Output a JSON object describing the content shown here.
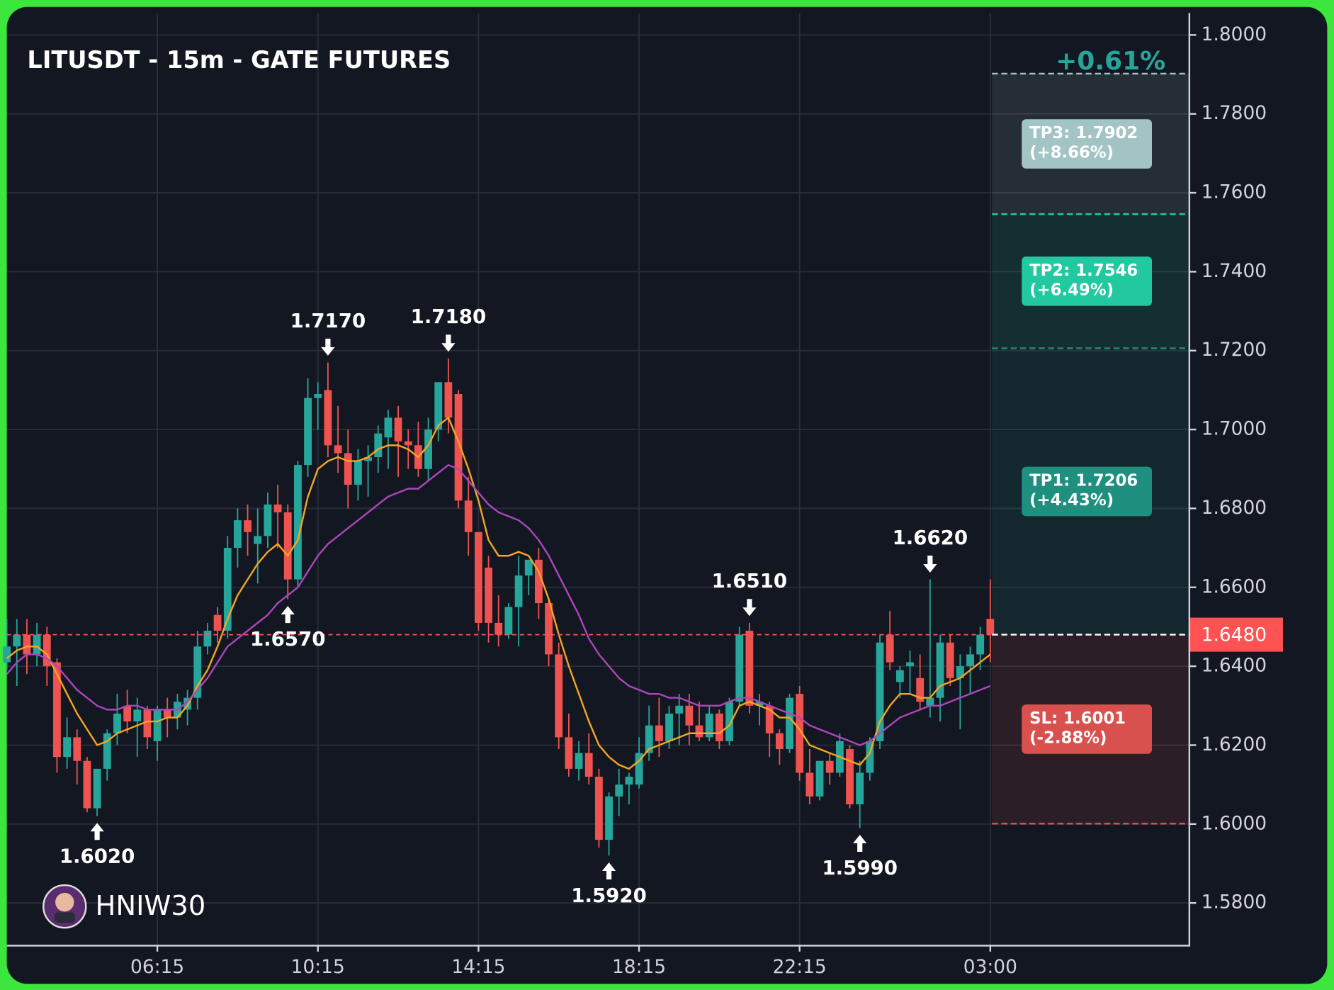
{
  "chart_data": {
    "type": "candlestick",
    "title": "LITUSDT - 15m - GATE FUTURES",
    "change_label": "+0.61%",
    "watermark": "HNIW30",
    "up_color": "#26a69a",
    "down_color": "#ef5350",
    "grid": true,
    "x": [
      "02:30",
      "02:45",
      "03:00",
      "03:15",
      "03:30",
      "03:45",
      "04:00",
      "04:15",
      "04:30",
      "04:45",
      "05:00",
      "05:15",
      "05:30",
      "05:45",
      "06:00",
      "06:15",
      "06:30",
      "06:45",
      "07:00",
      "07:15",
      "07:30",
      "07:45",
      "08:00",
      "08:15",
      "08:30",
      "08:45",
      "09:00",
      "09:15",
      "09:30",
      "09:45",
      "10:00",
      "10:15",
      "10:30",
      "10:45",
      "11:00",
      "11:15",
      "11:30",
      "11:45",
      "12:00",
      "12:15",
      "12:30",
      "12:45",
      "13:00",
      "13:15",
      "13:30",
      "13:45",
      "14:00",
      "14:15",
      "14:30",
      "14:45",
      "15:00",
      "15:15",
      "15:30",
      "15:45",
      "16:00",
      "16:15",
      "16:30",
      "16:45",
      "17:00",
      "17:15",
      "17:30",
      "17:45",
      "18:00",
      "18:15",
      "18:30",
      "18:45",
      "19:00",
      "19:15",
      "19:30",
      "19:45",
      "20:00",
      "20:15",
      "20:30",
      "20:45",
      "21:00",
      "21:15",
      "21:30",
      "21:45",
      "22:00",
      "22:15",
      "22:30",
      "22:45",
      "23:00",
      "23:15",
      "23:30",
      "23:45",
      "00:00",
      "00:15",
      "00:30",
      "00:45",
      "01:00",
      "01:15",
      "01:30",
      "01:45",
      "02:00",
      "02:15",
      "02:30",
      "02:45",
      "03:00"
    ],
    "open": [
      1.641,
      1.645,
      1.648,
      1.643,
      1.648,
      1.641,
      1.617,
      1.622,
      1.616,
      1.604,
      1.614,
      1.623,
      1.63,
      1.626,
      1.629,
      1.621,
      1.629,
      1.627,
      1.629,
      1.632,
      1.645,
      1.653,
      1.649,
      1.67,
      1.677,
      1.671,
      1.673,
      1.681,
      1.679,
      1.662,
      1.691,
      1.708,
      1.71,
      1.696,
      1.694,
      1.686,
      1.692,
      1.693,
      1.698,
      1.703,
      1.697,
      1.696,
      1.69,
      1.7,
      1.712,
      1.709,
      1.682,
      1.674,
      1.665,
      1.651,
      1.648,
      1.655,
      1.663,
      1.667,
      1.656,
      1.643,
      1.622,
      1.614,
      1.618,
      1.612,
      1.596,
      1.607,
      1.61,
      1.61,
      1.618,
      1.625,
      1.621,
      1.628,
      1.63,
      1.625,
      1.622,
      1.628,
      1.621,
      1.631,
      1.649,
      1.63,
      1.63,
      1.623,
      1.619,
      1.633,
      1.613,
      1.607,
      1.616,
      1.613,
      1.619,
      1.605,
      1.613,
      1.621,
      1.648,
      1.636,
      1.64,
      1.637,
      1.63,
      1.632,
      1.646,
      1.637,
      1.64,
      1.643,
      1.652
    ],
    "high": [
      1.652,
      1.652,
      1.652,
      1.651,
      1.65,
      1.642,
      1.627,
      1.624,
      1.617,
      1.614,
      1.624,
      1.633,
      1.634,
      1.632,
      1.63,
      1.63,
      1.632,
      1.633,
      1.634,
      1.649,
      1.651,
      1.655,
      1.673,
      1.68,
      1.681,
      1.68,
      1.684,
      1.686,
      1.681,
      1.692,
      1.713,
      1.712,
      1.717,
      1.706,
      1.7,
      1.695,
      1.696,
      1.701,
      1.705,
      1.706,
      1.7,
      1.702,
      1.703,
      1.712,
      1.718,
      1.71,
      1.688,
      1.674,
      1.668,
      1.658,
      1.656,
      1.668,
      1.667,
      1.67,
      1.657,
      1.646,
      1.628,
      1.621,
      1.623,
      1.614,
      1.608,
      1.614,
      1.613,
      1.622,
      1.63,
      1.632,
      1.63,
      1.633,
      1.633,
      1.631,
      1.63,
      1.629,
      1.632,
      1.65,
      1.651,
      1.633,
      1.631,
      1.624,
      1.633,
      1.635,
      1.619,
      1.616,
      1.618,
      1.623,
      1.62,
      1.616,
      1.622,
      1.648,
      1.654,
      1.64,
      1.644,
      1.643,
      1.662,
      1.648,
      1.648,
      1.643,
      1.645,
      1.65,
      1.662
    ],
    "low": [
      1.639,
      1.635,
      1.638,
      1.64,
      1.635,
      1.613,
      1.614,
      1.61,
      1.603,
      1.602,
      1.611,
      1.62,
      1.623,
      1.617,
      1.619,
      1.616,
      1.622,
      1.624,
      1.625,
      1.629,
      1.643,
      1.646,
      1.647,
      1.665,
      1.668,
      1.661,
      1.67,
      1.67,
      1.657,
      1.66,
      1.688,
      1.7,
      1.693,
      1.689,
      1.68,
      1.682,
      1.683,
      1.689,
      1.69,
      1.688,
      1.69,
      1.688,
      1.687,
      1.697,
      1.699,
      1.68,
      1.668,
      1.649,
      1.646,
      1.645,
      1.647,
      1.645,
      1.658,
      1.652,
      1.64,
      1.619,
      1.612,
      1.611,
      1.61,
      1.594,
      1.592,
      1.602,
      1.605,
      1.609,
      1.616,
      1.617,
      1.619,
      1.62,
      1.62,
      1.621,
      1.621,
      1.619,
      1.62,
      1.63,
      1.628,
      1.625,
      1.617,
      1.615,
      1.618,
      1.611,
      1.605,
      1.606,
      1.61,
      1.612,
      1.604,
      1.599,
      1.611,
      1.619,
      1.639,
      1.632,
      1.633,
      1.629,
      1.627,
      1.626,
      1.635,
      1.624,
      1.633,
      1.639,
      1.641
    ],
    "close": [
      1.645,
      1.648,
      1.643,
      1.648,
      1.64,
      1.617,
      1.622,
      1.616,
      1.604,
      1.614,
      1.623,
      1.628,
      1.626,
      1.629,
      1.622,
      1.629,
      1.627,
      1.631,
      1.632,
      1.645,
      1.649,
      1.649,
      1.67,
      1.677,
      1.674,
      1.673,
      1.681,
      1.679,
      1.662,
      1.691,
      1.708,
      1.709,
      1.696,
      1.694,
      1.686,
      1.692,
      1.693,
      1.699,
      1.703,
      1.697,
      1.696,
      1.69,
      1.7,
      1.712,
      1.703,
      1.682,
      1.674,
      1.651,
      1.651,
      1.648,
      1.655,
      1.663,
      1.667,
      1.656,
      1.643,
      1.622,
      1.614,
      1.618,
      1.612,
      1.596,
      1.607,
      1.61,
      1.612,
      1.618,
      1.625,
      1.621,
      1.628,
      1.63,
      1.625,
      1.622,
      1.628,
      1.621,
      1.631,
      1.648,
      1.63,
      1.631,
      1.623,
      1.619,
      1.632,
      1.613,
      1.607,
      1.616,
      1.613,
      1.621,
      1.605,
      1.613,
      1.621,
      1.646,
      1.641,
      1.639,
      1.641,
      1.631,
      1.632,
      1.646,
      1.637,
      1.64,
      1.643,
      1.648,
      1.648
    ],
    "ma_lines": [
      {
        "color": "#f5a623",
        "values": [
          1.642,
          1.644,
          1.645,
          1.645,
          1.643,
          1.638,
          1.633,
          1.628,
          1.624,
          1.62,
          1.621,
          1.623,
          1.624,
          1.625,
          1.626,
          1.626,
          1.627,
          1.627,
          1.63,
          1.635,
          1.639,
          1.645,
          1.652,
          1.658,
          1.662,
          1.666,
          1.669,
          1.671,
          1.668,
          1.672,
          1.683,
          1.69,
          1.692,
          1.693,
          1.692,
          1.692,
          1.693,
          1.695,
          1.696,
          1.696,
          1.695,
          1.693,
          1.696,
          1.701,
          1.703,
          1.697,
          1.69,
          1.682,
          1.672,
          1.668,
          1.668,
          1.669,
          1.668,
          1.664,
          1.657,
          1.648,
          1.64,
          1.633,
          1.626,
          1.62,
          1.617,
          1.615,
          1.614,
          1.616,
          1.619,
          1.62,
          1.621,
          1.622,
          1.623,
          1.623,
          1.623,
          1.623,
          1.625,
          1.63,
          1.631,
          1.63,
          1.629,
          1.627,
          1.627,
          1.624,
          1.62,
          1.619,
          1.618,
          1.617,
          1.616,
          1.615,
          1.618,
          1.626,
          1.63,
          1.633,
          1.633,
          1.632,
          1.632,
          1.635,
          1.636,
          1.637,
          1.639,
          1.641,
          1.643
        ]
      },
      {
        "color": "#ab47bc",
        "values": [
          1.638,
          1.641,
          1.643,
          1.643,
          1.642,
          1.64,
          1.637,
          1.634,
          1.632,
          1.63,
          1.629,
          1.629,
          1.63,
          1.63,
          1.629,
          1.629,
          1.629,
          1.629,
          1.631,
          1.634,
          1.637,
          1.641,
          1.645,
          1.647,
          1.649,
          1.651,
          1.653,
          1.656,
          1.658,
          1.66,
          1.664,
          1.668,
          1.671,
          1.673,
          1.675,
          1.677,
          1.679,
          1.681,
          1.683,
          1.684,
          1.685,
          1.685,
          1.687,
          1.689,
          1.691,
          1.69,
          1.687,
          1.684,
          1.681,
          1.679,
          1.678,
          1.677,
          1.675,
          1.672,
          1.668,
          1.663,
          1.658,
          1.653,
          1.647,
          1.643,
          1.64,
          1.637,
          1.635,
          1.634,
          1.633,
          1.633,
          1.632,
          1.632,
          1.631,
          1.63,
          1.63,
          1.63,
          1.631,
          1.632,
          1.632,
          1.631,
          1.63,
          1.629,
          1.628,
          1.627,
          1.625,
          1.624,
          1.623,
          1.622,
          1.621,
          1.62,
          1.621,
          1.623,
          1.625,
          1.627,
          1.628,
          1.629,
          1.63,
          1.63,
          1.631,
          1.632,
          1.633,
          1.634,
          1.635
        ]
      }
    ],
    "ylim": [
      1.5694,
      1.8056
    ],
    "yticks": [
      {
        "value": 1.8,
        "label": "1.8000"
      },
      {
        "value": 1.78,
        "label": "1.7800"
      },
      {
        "value": 1.76,
        "label": "1.7600"
      },
      {
        "value": 1.74,
        "label": "1.7400"
      },
      {
        "value": 1.72,
        "label": "1.7200"
      },
      {
        "value": 1.7,
        "label": "1.7000"
      },
      {
        "value": 1.68,
        "label": "1.6800"
      },
      {
        "value": 1.66,
        "label": "1.6600"
      },
      {
        "value": 1.64,
        "label": "1.6400"
      },
      {
        "value": 1.62,
        "label": "1.6200"
      },
      {
        "value": 1.6,
        "label": "1.6000"
      },
      {
        "value": 1.58,
        "label": "1.5800"
      }
    ],
    "xticks": [
      "06:15",
      "10:15",
      "14:15",
      "18:15",
      "22:15",
      "03:00"
    ],
    "last_price": {
      "value": 1.648,
      "label": "1.6480",
      "color": "#ff5252"
    },
    "levels": [
      {
        "value": 1.7902,
        "label": "TP3: 1.7902",
        "change": "(+8.66%)",
        "color": "#a3c4c4"
      },
      {
        "value": 1.7546,
        "label": "TP2: 1.7546",
        "change": "(+6.49%)",
        "color": "#22c9a0"
      },
      {
        "value": 1.7206,
        "label": "TP1: 1.7206",
        "change": "(+4.43%)",
        "color": "#1f8f80"
      },
      {
        "value": 1.6001,
        "label": "SL: 1.6001",
        "change": "(-2.88%)",
        "color": "#d9514e"
      }
    ],
    "annotations": [
      {
        "x": "04:45",
        "value": 1.602,
        "label": "1.6020",
        "side": "low"
      },
      {
        "x": "09:30",
        "value": 1.657,
        "label": "1.6570",
        "side": "low"
      },
      {
        "x": "10:30",
        "value": 1.717,
        "label": "1.7170",
        "side": "high"
      },
      {
        "x": "13:30",
        "value": 1.718,
        "label": "1.7180",
        "side": "high"
      },
      {
        "x": "17:30",
        "value": 1.592,
        "label": "1.5920",
        "side": "low"
      },
      {
        "x": "21:00",
        "value": 1.651,
        "label": "1.6510",
        "side": "high"
      },
      {
        "x": "23:45",
        "value": 1.599,
        "label": "1.5990",
        "side": "low"
      },
      {
        "x": "01:30",
        "value": 1.662,
        "label": "1.6620",
        "side": "high"
      }
    ]
  }
}
